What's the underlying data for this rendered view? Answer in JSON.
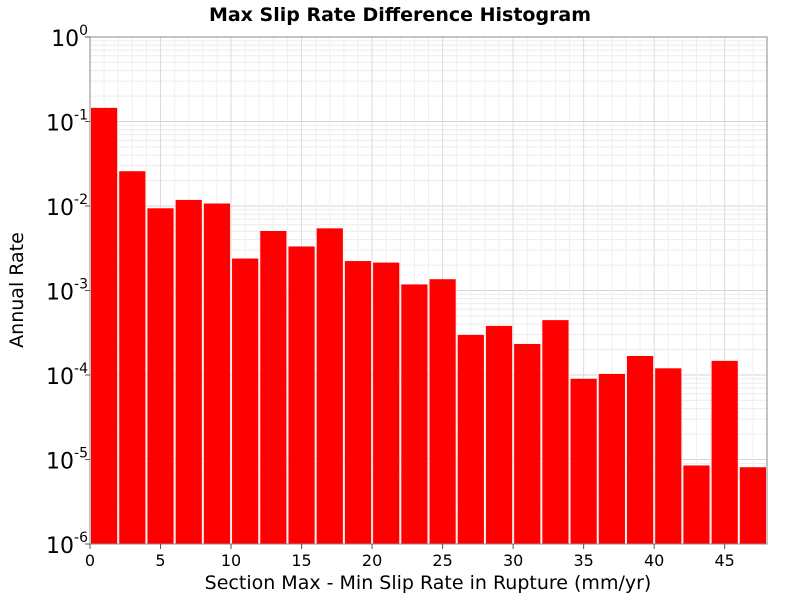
{
  "chart_data": {
    "type": "bar",
    "title": "Max Slip Rate Difference Histogram",
    "xlabel": "Section Max - Min Slip Rate in Rupture (mm/yr)",
    "ylabel": "Annual Rate",
    "x_scale": "linear",
    "y_scale": "log",
    "xlim": [
      0,
      48
    ],
    "ylim": [
      1e-06,
      1
    ],
    "bin_width": 2,
    "x_ticks": [
      0,
      5,
      10,
      15,
      20,
      25,
      30,
      35,
      40,
      45
    ],
    "y_ticks": [
      {
        "value": 1e-06,
        "base": "10",
        "exp": "-6"
      },
      {
        "value": 1e-05,
        "base": "10",
        "exp": "-5"
      },
      {
        "value": 0.0001,
        "base": "10",
        "exp": "-4"
      },
      {
        "value": 0.001,
        "base": "10",
        "exp": "-3"
      },
      {
        "value": 0.01,
        "base": "10",
        "exp": "-2"
      },
      {
        "value": 0.1,
        "base": "10",
        "exp": "-1"
      },
      {
        "value": 1,
        "base": "10",
        "exp": "0"
      }
    ],
    "grid": true,
    "bar_color": "#ff0000",
    "bin_starts": [
      0,
      2,
      4,
      6,
      8,
      10,
      12,
      14,
      16,
      18,
      20,
      22,
      24,
      26,
      28,
      30,
      32,
      34,
      36,
      38,
      40,
      42,
      44,
      46
    ],
    "values": [
      0.145,
      0.0258,
      0.0094,
      0.0118,
      0.0107,
      0.00239,
      0.00506,
      0.00332,
      0.00544,
      0.00223,
      0.00214,
      0.00118,
      0.00136,
      0.000298,
      0.000381,
      0.000233,
      0.000446,
      9.02e-05,
      0.000103,
      0.000168,
      0.00012,
      8.5e-06,
      0.000147,
      8.1e-06
    ]
  }
}
